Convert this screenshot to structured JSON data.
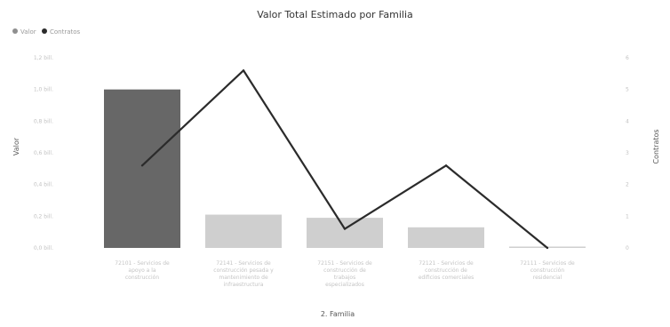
{
  "chart_data": {
    "type": "bar+line",
    "title": "Valor Total Estimado por Familia",
    "xlabel": "2. Familia",
    "ylabel": "Valor",
    "y2label": "Contratos",
    "legend": {
      "placement": "top-left",
      "entries": [
        {
          "name": "Valor",
          "color": "#8f8f8f"
        },
        {
          "name": "Contratos",
          "color": "#2b2b2b"
        }
      ]
    },
    "categories": [
      "72101 - Servicios de apoyo a la construcción",
      "72141 - Servicios de construcción pesada y mantenimiento de infraestructura",
      "72151 - Servicios de construcción de trabajos especializados",
      "72121 - Servicios de construcción de edificios comerciales",
      "72111 - Servicios de construcción residencial"
    ],
    "series": [
      {
        "name": "Valor",
        "type": "bar",
        "axis": "left",
        "values": [
          1.0,
          0.21,
          0.19,
          0.13,
          0.0
        ],
        "colors": [
          "#676767",
          "#cfcfcf",
          "#cfcfcf",
          "#cfcfcf",
          "#cfcfcf"
        ]
      },
      {
        "name": "Contratos",
        "type": "line",
        "axis": "right",
        "values": [
          2.6,
          5.6,
          0.6,
          2.6,
          0.0
        ],
        "color": "#2b2b2b"
      }
    ],
    "y_ticks_left": [
      "0,0 bill.",
      "0,2 bill.",
      "0,4 bill.",
      "0,6 bill.",
      "0,8 bill.",
      "1,0 bill.",
      "1,2 bill."
    ],
    "y_ticks_right": [
      "0",
      "1",
      "2",
      "3",
      "4",
      "5",
      "6"
    ],
    "ylim": [
      0,
      1.2
    ],
    "y2lim": [
      0,
      6.0
    ],
    "grid": false
  }
}
